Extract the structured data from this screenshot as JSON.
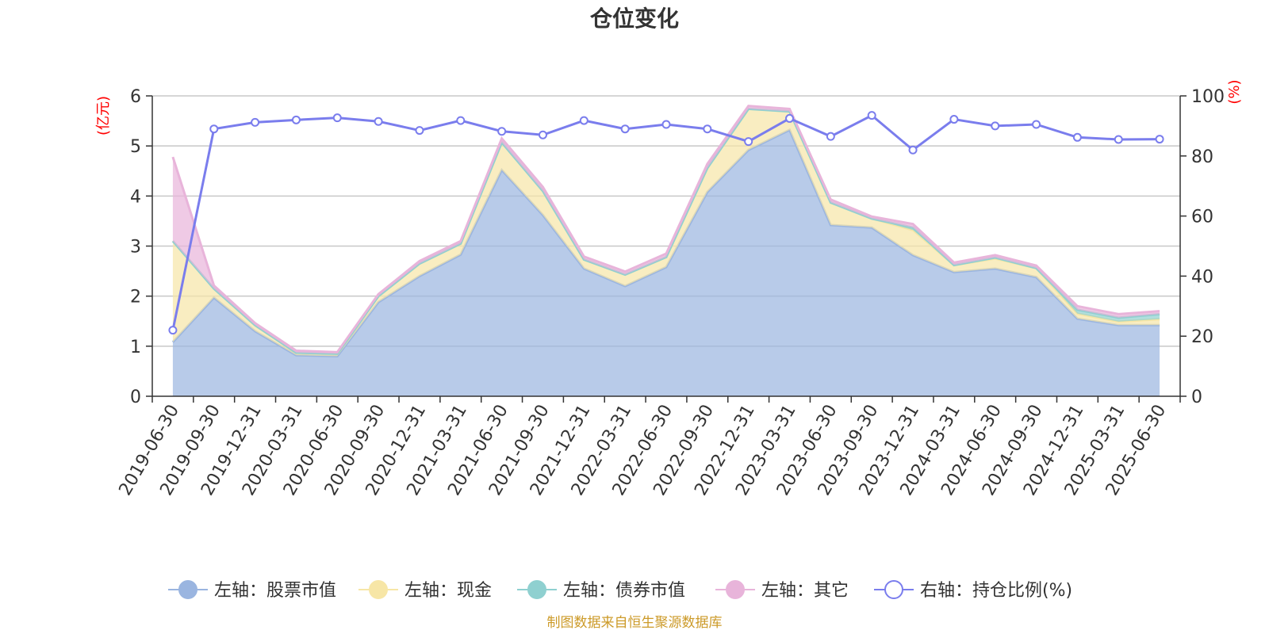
{
  "chart_data": {
    "type": "area",
    "title": "仓位变化",
    "left_axis": {
      "unit_label": "(亿元)",
      "range": [
        0,
        6
      ],
      "ticks": [
        "0",
        "1",
        "2",
        "3",
        "4",
        "5",
        "6"
      ]
    },
    "right_axis": {
      "unit_label": "(%)",
      "range": [
        0,
        100
      ],
      "ticks": [
        "0",
        "20",
        "40",
        "60",
        "80",
        "100"
      ]
    },
    "categories": [
      "2019-06-30",
      "2019-09-30",
      "2019-12-31",
      "2020-03-31",
      "2020-06-30",
      "2020-09-30",
      "2020-12-31",
      "2021-03-31",
      "2021-06-30",
      "2021-09-30",
      "2021-12-31",
      "2022-03-31",
      "2022-06-30",
      "2022-09-30",
      "2022-12-31",
      "2023-03-31",
      "2023-06-30",
      "2023-09-30",
      "2023-12-31",
      "2024-03-31",
      "2024-06-30",
      "2024-09-30",
      "2024-12-31",
      "2025-03-31",
      "2025-06-30"
    ],
    "stacked_series": [
      {
        "name": "左轴：股票市值",
        "color": "#9ab5e0",
        "values": [
          1.08,
          1.97,
          1.3,
          0.82,
          0.8,
          1.88,
          2.4,
          2.83,
          4.52,
          3.62,
          2.55,
          2.2,
          2.58,
          4.08,
          4.92,
          5.32,
          3.42,
          3.37,
          2.82,
          2.48,
          2.55,
          2.38,
          1.55,
          1.42,
          1.42
        ]
      },
      {
        "name": "左轴：现金",
        "color": "#f7e6a6",
        "values": [
          2.02,
          0.18,
          0.12,
          0.05,
          0.05,
          0.12,
          0.25,
          0.22,
          0.55,
          0.48,
          0.18,
          0.23,
          0.2,
          0.48,
          0.82,
          0.37,
          0.45,
          0.18,
          0.5,
          0.14,
          0.2,
          0.18,
          0.1,
          0.07,
          0.12
        ]
      },
      {
        "name": "左轴：债券市值",
        "color": "#8fd0d0",
        "values": [
          0,
          0,
          0,
          0,
          0,
          0,
          0,
          0,
          0,
          0,
          0,
          0,
          0,
          0,
          0,
          0,
          0,
          0,
          0.05,
          0,
          0.02,
          0,
          0.08,
          0.08,
          0.1
        ]
      },
      {
        "name": "左轴：其它",
        "color": "#e8b4da",
        "values": [
          1.68,
          0.06,
          0.04,
          0.04,
          0.03,
          0.04,
          0.05,
          0.05,
          0.08,
          0.08,
          0.06,
          0.06,
          0.07,
          0.08,
          0.06,
          0.05,
          0.06,
          0.04,
          0.07,
          0.05,
          0.05,
          0.05,
          0.07,
          0.07,
          0.06
        ]
      }
    ],
    "line_series": {
      "name": "右轴：持仓比例(%)",
      "color": "#7a7ded",
      "values": [
        22.0,
        89.0,
        91.2,
        92.0,
        92.7,
        91.5,
        88.5,
        91.8,
        88.2,
        87.0,
        91.8,
        89.0,
        90.5,
        89.0,
        84.8,
        92.5,
        86.5,
        93.5,
        82.0,
        92.2,
        90.0,
        90.5,
        86.2,
        85.5,
        85.6
      ]
    },
    "legend": {
      "position": "bottom"
    },
    "grid": true
  },
  "source": "制图数据来自恒生聚源数据库"
}
